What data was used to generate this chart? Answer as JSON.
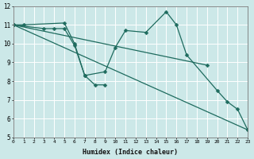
{
  "xlabel": "Humidex (Indice chaleur)",
  "background_color": "#cce8e8",
  "line_color": "#1e6b5e",
  "grid_color": "#ffffff",
  "xlim": [
    0,
    23
  ],
  "ylim": [
    5,
    12
  ],
  "line1": {
    "x": [
      0,
      1,
      5,
      6,
      7,
      9,
      10,
      11,
      13,
      15,
      16,
      17,
      20,
      21,
      22,
      23
    ],
    "y": [
      11,
      11,
      11.1,
      10.0,
      8.3,
      8.5,
      9.8,
      10.7,
      10.6,
      11.7,
      11.0,
      9.4,
      7.5,
      6.9,
      6.5,
      5.4
    ]
  },
  "line2": {
    "x": [
      0,
      3,
      4,
      5,
      6,
      7,
      8,
      9
    ],
    "y": [
      11,
      10.8,
      10.8,
      10.8,
      9.9,
      8.3,
      7.8,
      7.8
    ]
  },
  "line3": {
    "x": [
      0,
      19
    ],
    "y": [
      11,
      8.85
    ]
  },
  "line4": {
    "x": [
      0,
      23
    ],
    "y": [
      11,
      5.4
    ]
  },
  "xticks": [
    0,
    1,
    2,
    3,
    4,
    5,
    6,
    7,
    8,
    9,
    10,
    11,
    12,
    13,
    14,
    15,
    16,
    17,
    18,
    19,
    20,
    21,
    22,
    23
  ],
  "yticks": [
    5,
    6,
    7,
    8,
    9,
    10,
    11,
    12
  ]
}
